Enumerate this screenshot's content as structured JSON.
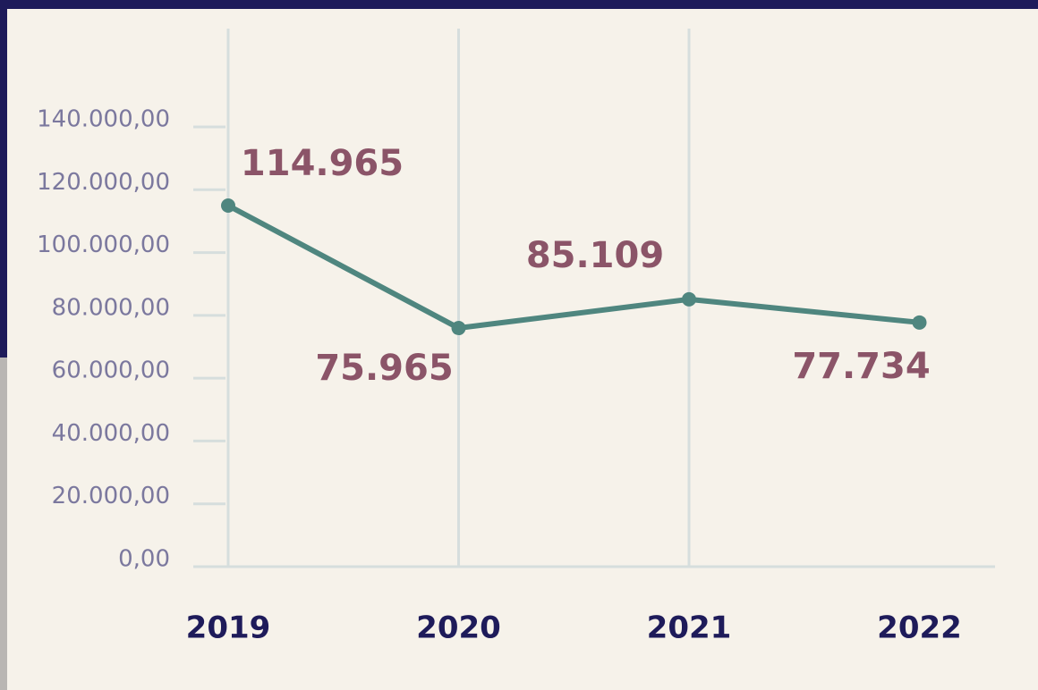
{
  "chart_data": {
    "type": "line",
    "categories": [
      "2019",
      "2020",
      "2021",
      "2022"
    ],
    "series": [
      {
        "color": "#4f867f",
        "values": [
          114965,
          75965,
          85109,
          77734
        ],
        "value_labels": [
          "114.965",
          "75.965",
          "85.109",
          "77.734"
        ]
      }
    ],
    "ylim": [
      0,
      140000
    ],
    "yticks": [
      {
        "value": 0,
        "label": "0,00"
      },
      {
        "value": 20000,
        "label": "20.000,00"
      },
      {
        "value": 40000,
        "label": "40.000,00"
      },
      {
        "value": 60000,
        "label": "60.000,00"
      },
      {
        "value": 80000,
        "label": "80.000,00"
      },
      {
        "value": 100000,
        "label": "100.000,00"
      },
      {
        "value": 120000,
        "label": "120.000,00"
      },
      {
        "value": 140000,
        "label": "140.000,00"
      }
    ],
    "grid": true
  }
}
